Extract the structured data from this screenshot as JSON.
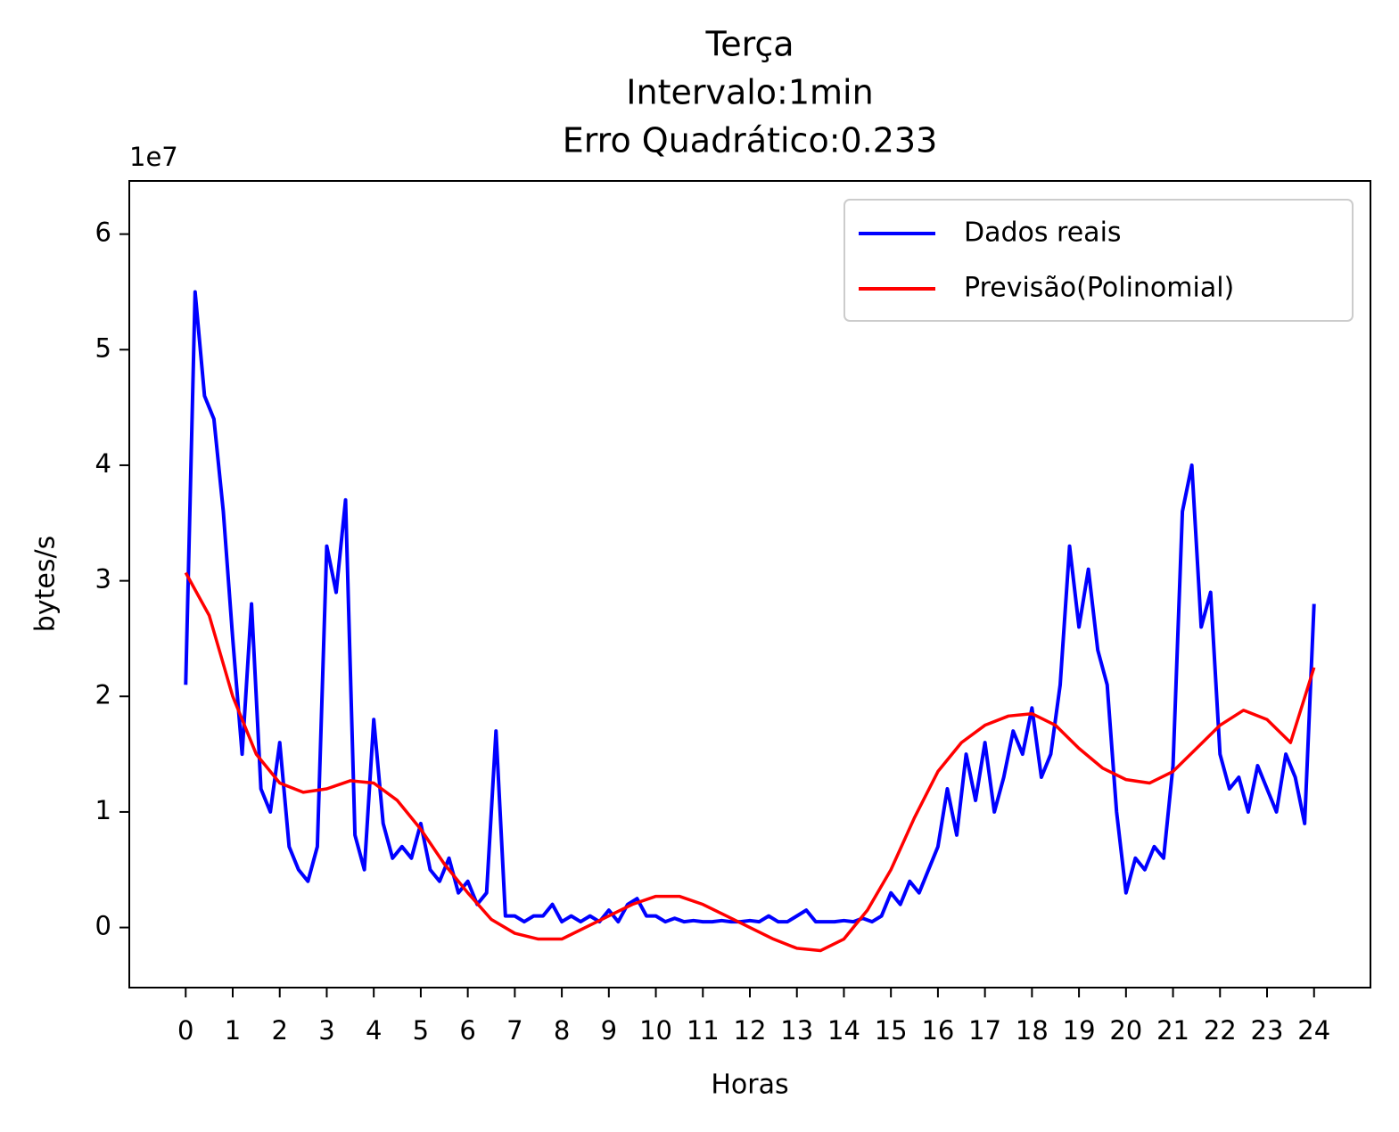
{
  "chart_data": {
    "type": "line",
    "title": [
      "Terça",
      "Intervalo:1min",
      "Erro Quadrático:0.233"
    ],
    "xlabel": "Horas",
    "ylabel": "bytes/s",
    "y_offset_label": "1e7",
    "xlim": [
      -1.2,
      25.2
    ],
    "ylim": [
      -0.52,
      6.46
    ],
    "xticks": [
      0,
      1,
      2,
      3,
      4,
      5,
      6,
      7,
      8,
      9,
      10,
      11,
      12,
      13,
      14,
      15,
      16,
      17,
      18,
      19,
      20,
      21,
      22,
      23,
      24
    ],
    "yticks": [
      0,
      1,
      2,
      3,
      4,
      5,
      6
    ],
    "legend": "upper right",
    "series": [
      {
        "name": "Dados reais",
        "color": "#0000ff",
        "x": [
          0,
          0.2,
          0.4,
          0.6,
          0.8,
          1,
          1.2,
          1.4,
          1.6,
          1.8,
          2,
          2.2,
          2.4,
          2.6,
          2.8,
          3,
          3.2,
          3.4,
          3.6,
          3.8,
          4,
          4.2,
          4.4,
          4.6,
          4.8,
          5,
          5.2,
          5.4,
          5.6,
          5.8,
          6,
          6.2,
          6.4,
          6.6,
          6.8,
          7,
          7.2,
          7.4,
          7.6,
          7.8,
          8,
          8.2,
          8.4,
          8.6,
          8.8,
          9,
          9.2,
          9.4,
          9.6,
          9.8,
          10,
          10.2,
          10.4,
          10.6,
          10.8,
          11,
          11.2,
          11.4,
          11.6,
          11.8,
          12,
          12.2,
          12.4,
          12.6,
          12.8,
          13,
          13.2,
          13.4,
          13.6,
          13.8,
          14,
          14.2,
          14.4,
          14.6,
          14.8,
          15,
          15.2,
          15.4,
          15.6,
          15.8,
          16,
          16.2,
          16.4,
          16.6,
          16.8,
          17,
          17.2,
          17.4,
          17.6,
          17.8,
          18,
          18.2,
          18.4,
          18.6,
          18.8,
          19,
          19.2,
          19.4,
          19.6,
          19.8,
          20,
          20.2,
          20.4,
          20.6,
          20.8,
          21,
          21.2,
          21.4,
          21.6,
          21.8,
          22,
          22.2,
          22.4,
          22.6,
          22.8,
          23,
          23.2,
          23.4,
          23.6,
          23.8,
          24
        ],
        "values": [
          2.1,
          5.5,
          4.6,
          4.4,
          3.6,
          2.5,
          1.5,
          2.8,
          1.2,
          1.0,
          1.6,
          0.7,
          0.5,
          0.4,
          0.7,
          3.3,
          2.9,
          3.7,
          0.8,
          0.5,
          1.8,
          0.9,
          0.6,
          0.7,
          0.6,
          0.9,
          0.5,
          0.4,
          0.6,
          0.3,
          0.4,
          0.2,
          0.3,
          1.7,
          0.1,
          0.1,
          0.05,
          0.1,
          0.1,
          0.2,
          0.05,
          0.1,
          0.05,
          0.1,
          0.05,
          0.15,
          0.05,
          0.2,
          0.25,
          0.1,
          0.1,
          0.05,
          0.08,
          0.05,
          0.06,
          0.05,
          0.05,
          0.06,
          0.05,
          0.05,
          0.06,
          0.05,
          0.1,
          0.05,
          0.05,
          0.1,
          0.15,
          0.05,
          0.05,
          0.05,
          0.06,
          0.05,
          0.08,
          0.05,
          0.1,
          0.3,
          0.2,
          0.4,
          0.3,
          0.5,
          0.7,
          1.2,
          0.8,
          1.5,
          1.1,
          1.6,
          1.0,
          1.3,
          1.7,
          1.5,
          1.9,
          1.3,
          1.5,
          2.1,
          3.3,
          2.6,
          3.1,
          2.4,
          2.1,
          1.0,
          0.3,
          0.6,
          0.5,
          0.7,
          0.6,
          1.4,
          3.6,
          4.0,
          2.6,
          2.9,
          1.5,
          1.2,
          1.3,
          1.0,
          1.4,
          1.2,
          1.0,
          1.5,
          1.3,
          0.9,
          2.8
        ]
      },
      {
        "name": "Previsão(Polinomial)",
        "color": "#ff0000",
        "x": [
          0,
          0.5,
          1,
          1.5,
          2,
          2.5,
          3,
          3.5,
          4,
          4.5,
          5,
          5.5,
          6,
          6.5,
          7,
          7.5,
          8,
          8.5,
          9,
          9.5,
          10,
          10.5,
          11,
          11.5,
          12,
          12.5,
          13,
          13.5,
          14,
          14.5,
          15,
          15.5,
          16,
          16.5,
          17,
          17.5,
          18,
          18.5,
          19,
          19.5,
          20,
          20.5,
          21,
          21.5,
          22,
          22.5,
          23,
          23.5,
          24
        ],
        "values": [
          3.07,
          2.7,
          2.0,
          1.5,
          1.25,
          1.17,
          1.2,
          1.27,
          1.25,
          1.1,
          0.85,
          0.55,
          0.3,
          0.07,
          -0.05,
          -0.1,
          -0.1,
          0.0,
          0.1,
          0.2,
          0.27,
          0.27,
          0.2,
          0.1,
          0.0,
          -0.1,
          -0.18,
          -0.2,
          -0.1,
          0.15,
          0.5,
          0.95,
          1.35,
          1.6,
          1.75,
          1.83,
          1.85,
          1.75,
          1.55,
          1.38,
          1.28,
          1.25,
          1.35,
          1.55,
          1.75,
          1.88,
          1.8,
          1.6,
          2.25
        ]
      }
    ]
  }
}
